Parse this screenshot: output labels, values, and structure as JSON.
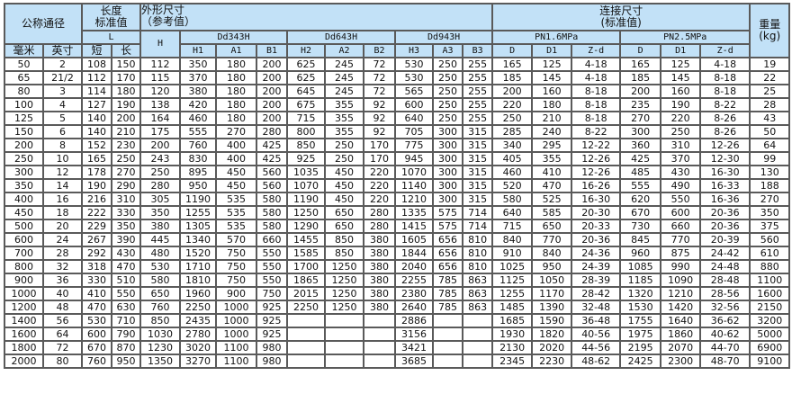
{
  "header": {
    "nominal_size": "公称通径",
    "length_std": [
      "长度",
      "标准值"
    ],
    "outline_ref": [
      "外形尺寸",
      "（参考值）"
    ],
    "connect_std": [
      "连接尺寸",
      "(标准值)"
    ],
    "weight": [
      "重量",
      "(kg)"
    ],
    "L": "L",
    "H": "H",
    "h_mark": ",",
    "groups": [
      "Dd343H",
      "Dd643H",
      "Dd943H",
      "PN1.6MPa",
      "PN2.5MPa"
    ],
    "sub": [
      "毫米",
      "英寸",
      "短",
      "长",
      "H1",
      "A1",
      "B1",
      "H2",
      "A2",
      "B2",
      "H3",
      "A3",
      "B3",
      "D",
      "D1",
      "Z-d",
      "D",
      "D1",
      "Z-d"
    ]
  },
  "colors": {
    "header_bg": "#c2e1f7",
    "border": "#5a5a5a"
  },
  "rows": [
    [
      "50",
      "2",
      "108",
      "150",
      "112",
      "350",
      "180",
      "200",
      "625",
      "245",
      "72",
      "530",
      "250",
      "255",
      "165",
      "125",
      "4-18",
      "165",
      "125",
      "4-18",
      "19"
    ],
    [
      "65",
      "21/2",
      "112",
      "170",
      "115",
      "370",
      "180",
      "200",
      "625",
      "245",
      "72",
      "530",
      "250",
      "255",
      "185",
      "145",
      "4-18",
      "185",
      "145",
      "8-18",
      "22"
    ],
    [
      "80",
      "3",
      "114",
      "180",
      "120",
      "380",
      "180",
      "200",
      "645",
      "245",
      "72",
      "565",
      "250",
      "255",
      "200",
      "160",
      "8-18",
      "200",
      "160",
      "8-18",
      "25"
    ],
    [
      "100",
      "4",
      "127",
      "190",
      "138",
      "420",
      "180",
      "200",
      "675",
      "355",
      "92",
      "600",
      "250",
      "255",
      "220",
      "180",
      "8-18",
      "235",
      "190",
      "8-22",
      "28"
    ],
    [
      "125",
      "5",
      "140",
      "200",
      "164",
      "460",
      "180",
      "200",
      "715",
      "355",
      "92",
      "640",
      "250",
      "255",
      "250",
      "210",
      "8-18",
      "270",
      "220",
      "8-26",
      "43"
    ],
    [
      "150",
      "6",
      "140",
      "210",
      "175",
      "555",
      "270",
      "280",
      "800",
      "355",
      "92",
      "705",
      "300",
      "315",
      "285",
      "240",
      "8-22",
      "300",
      "250",
      "8-26",
      "50"
    ],
    [
      "200",
      "8",
      "152",
      "230",
      "200",
      "760",
      "400",
      "425",
      "850",
      "250",
      "170",
      "775",
      "300",
      "315",
      "340",
      "295",
      "12-22",
      "360",
      "310",
      "12-26",
      "64"
    ],
    [
      "250",
      "10",
      "165",
      "250",
      "243",
      "830",
      "400",
      "425",
      "925",
      "250",
      "170",
      "945",
      "300",
      "315",
      "405",
      "355",
      "12-26",
      "425",
      "370",
      "12-30",
      "99"
    ],
    [
      "300",
      "12",
      "178",
      "270",
      "250",
      "895",
      "450",
      "560",
      "1035",
      "450",
      "220",
      "1070",
      "300",
      "315",
      "460",
      "410",
      "12-26",
      "485",
      "430",
      "16-30",
      "130"
    ],
    [
      "350",
      "14",
      "190",
      "290",
      "280",
      "950",
      "450",
      "560",
      "1070",
      "450",
      "220",
      "1140",
      "300",
      "315",
      "520",
      "470",
      "16-26",
      "555",
      "490",
      "16-33",
      "188"
    ],
    [
      "400",
      "16",
      "216",
      "310",
      "305",
      "1190",
      "535",
      "580",
      "1190",
      "450",
      "220",
      "1210",
      "300",
      "315",
      "580",
      "525",
      "16-30",
      "620",
      "550",
      "16-36",
      "270"
    ],
    [
      "450",
      "18",
      "222",
      "330",
      "350",
      "1255",
      "535",
      "580",
      "1250",
      "650",
      "280",
      "1335",
      "575",
      "714",
      "640",
      "585",
      "20-30",
      "670",
      "600",
      "20-36",
      "350"
    ],
    [
      "500",
      "20",
      "229",
      "350",
      "380",
      "1305",
      "535",
      "580",
      "1290",
      "650",
      "280",
      "1415",
      "575",
      "714",
      "715",
      "650",
      "20-33",
      "730",
      "660",
      "20-36",
      "375"
    ],
    [
      "600",
      "24",
      "267",
      "390",
      "445",
      "1340",
      "570",
      "660",
      "1455",
      "850",
      "380",
      "1605",
      "656",
      "810",
      "840",
      "770",
      "20-36",
      "845",
      "770",
      "20-39",
      "560"
    ],
    [
      "700",
      "28",
      "292",
      "430",
      "480",
      "1520",
      "750",
      "550",
      "1585",
      "850",
      "380",
      "1844",
      "656",
      "810",
      "910",
      "840",
      "24-36",
      "960",
      "875",
      "24-42",
      "610"
    ],
    [
      "800",
      "32",
      "318",
      "470",
      "530",
      "1710",
      "750",
      "550",
      "1700",
      "1250",
      "380",
      "2040",
      "656",
      "810",
      "1025",
      "950",
      "24-39",
      "1085",
      "990",
      "24-48",
      "880"
    ],
    [
      "900",
      "36",
      "330",
      "510",
      "580",
      "1810",
      "750",
      "550",
      "1865",
      "1250",
      "380",
      "2255",
      "785",
      "863",
      "1125",
      "1050",
      "28-39",
      "1185",
      "1090",
      "28-48",
      "1100"
    ],
    [
      "1000",
      "40",
      "410",
      "550",
      "650",
      "1960",
      "900",
      "750",
      "2015",
      "1250",
      "380",
      "2380",
      "785",
      "863",
      "1255",
      "1170",
      "28-42",
      "1320",
      "1210",
      "28-56",
      "1600"
    ],
    [
      "1200",
      "48",
      "470",
      "630",
      "760",
      "2250",
      "1000",
      "925",
      "2250",
      "1250",
      "380",
      "2640",
      "785",
      "863",
      "1485",
      "1390",
      "32-48",
      "1530",
      "1420",
      "32-56",
      "2150"
    ],
    [
      "1400",
      "56",
      "530",
      "710",
      "850",
      "2435",
      "1000",
      "925",
      "",
      "",
      "",
      "2886",
      "",
      "",
      "1685",
      "1590",
      "36-48",
      "1755",
      "1640",
      "36-62",
      "3200"
    ],
    [
      "1600",
      "64",
      "600",
      "790",
      "1030",
      "2780",
      "1000",
      "925",
      "",
      "",
      "",
      "3156",
      "",
      "",
      "1930",
      "1820",
      "40-56",
      "1975",
      "1860",
      "40-62",
      "5000"
    ],
    [
      "1800",
      "72",
      "670",
      "870",
      "1230",
      "3020",
      "1100",
      "980",
      "",
      "",
      "",
      "3421",
      "",
      "",
      "2130",
      "2020",
      "44-56",
      "2195",
      "2070",
      "44-70",
      "6900"
    ],
    [
      "2000",
      "80",
      "760",
      "950",
      "1350",
      "3270",
      "1100",
      "980",
      "",
      "",
      "",
      "3685",
      "",
      "",
      "2345",
      "2230",
      "48-62",
      "2425",
      "2300",
      "48-70",
      "9100"
    ]
  ]
}
